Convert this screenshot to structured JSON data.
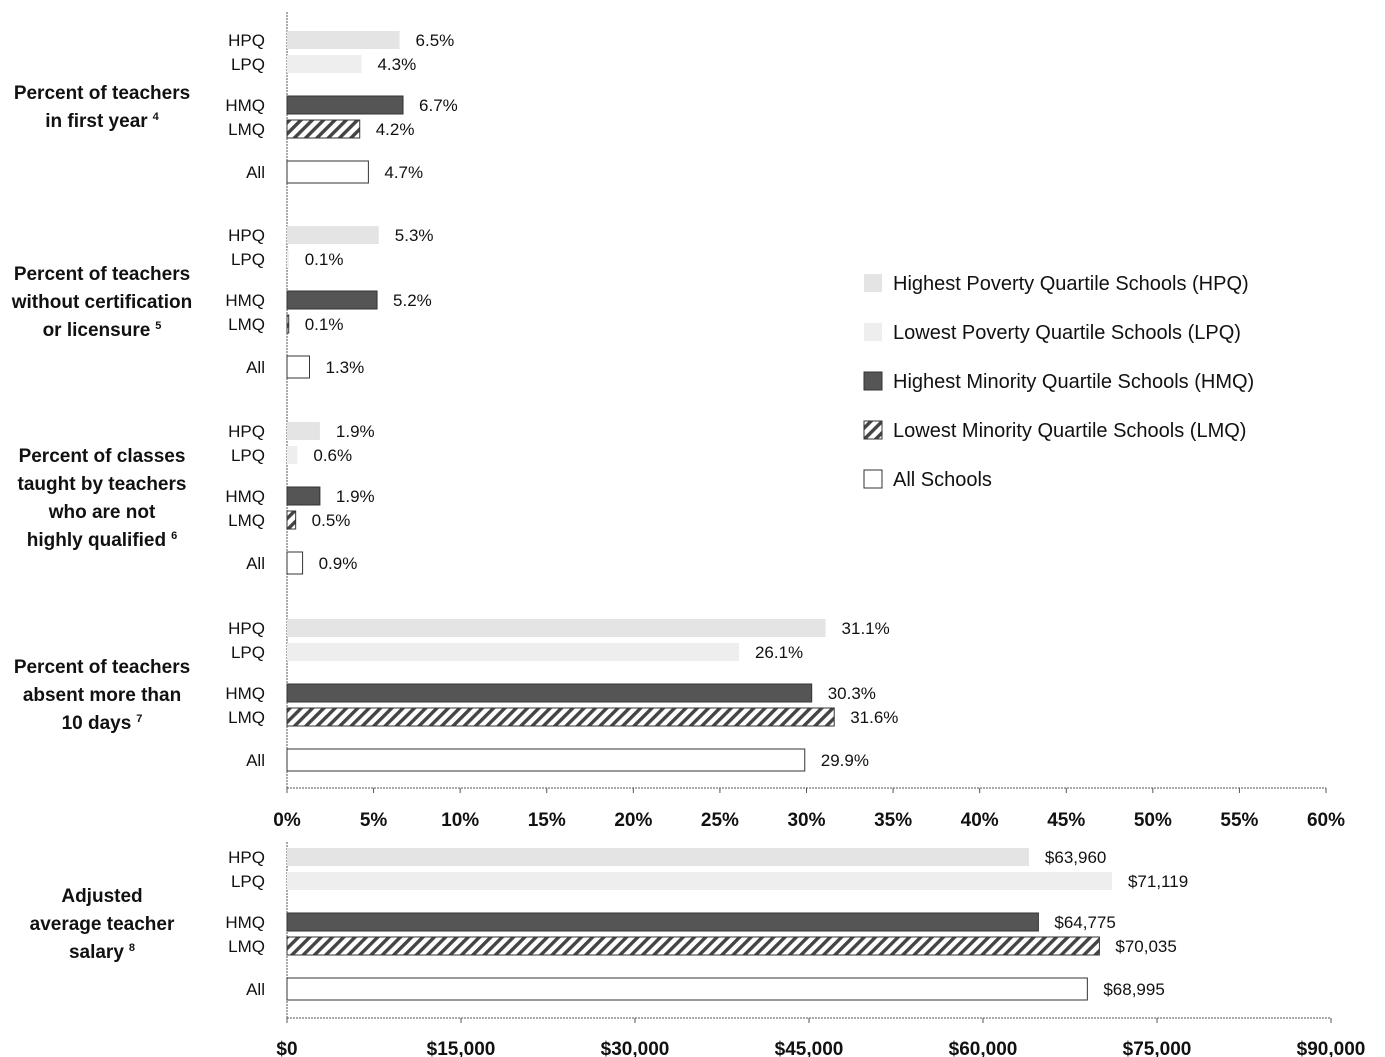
{
  "colors": {
    "HPQ": "#e4e4e4",
    "LPQ": "#eeeeee",
    "HMQ": "#555555",
    "LMQ_stripe": "#444444",
    "All": "#ffffff",
    "axis": "#555555"
  },
  "legend": [
    {
      "key": "HPQ",
      "label": "Highest Poverty Quartile Schools (HPQ)"
    },
    {
      "key": "LPQ",
      "label": "Lowest Poverty Quartile Schools (LPQ)"
    },
    {
      "key": "HMQ",
      "label": "Highest Minority Quartile Schools (HMQ)"
    },
    {
      "key": "LMQ",
      "label": "Lowest Minority Quartile Schools (LMQ)"
    },
    {
      "key": "All",
      "label": "All Schools"
    }
  ],
  "chart_data": [
    {
      "type": "bar",
      "orientation": "horizontal",
      "xlim": [
        0,
        60
      ],
      "x_ticks": [
        0,
        5,
        10,
        15,
        20,
        25,
        30,
        35,
        40,
        45,
        50,
        55,
        60
      ],
      "x_tick_labels": [
        "0%",
        "5%",
        "10%",
        "15%",
        "20%",
        "25%",
        "30%",
        "35%",
        "40%",
        "45%",
        "50%",
        "55%",
        "60%"
      ],
      "legend_position": "right",
      "groups": [
        {
          "title": [
            "Percent of teachers",
            "in first year"
          ],
          "footnote": "4",
          "bars": [
            {
              "label": "HPQ",
              "value": 6.5,
              "value_label": "6.5%"
            },
            {
              "label": "LPQ",
              "value": 4.3,
              "value_label": "4.3%"
            },
            {
              "label": "HMQ",
              "value": 6.7,
              "value_label": "6.7%"
            },
            {
              "label": "LMQ",
              "value": 4.2,
              "value_label": "4.2%"
            },
            {
              "label": "All",
              "value": 4.7,
              "value_label": "4.7%"
            }
          ]
        },
        {
          "title": [
            "Percent of teachers",
            "without certification",
            "or licensure"
          ],
          "footnote": "5",
          "bars": [
            {
              "label": "HPQ",
              "value": 5.3,
              "value_label": "5.3%"
            },
            {
              "label": "LPQ",
              "value": 0.1,
              "value_label": "0.1%"
            },
            {
              "label": "HMQ",
              "value": 5.2,
              "value_label": "5.2%"
            },
            {
              "label": "LMQ",
              "value": 0.1,
              "value_label": "0.1%"
            },
            {
              "label": "All",
              "value": 1.3,
              "value_label": "1.3%"
            }
          ]
        },
        {
          "title": [
            "Percent of classes",
            "taught by teachers",
            "who are not",
            "highly qualified"
          ],
          "footnote": "6",
          "bars": [
            {
              "label": "HPQ",
              "value": 1.9,
              "value_label": "1.9%"
            },
            {
              "label": "LPQ",
              "value": 0.6,
              "value_label": "0.6%"
            },
            {
              "label": "HMQ",
              "value": 1.9,
              "value_label": "1.9%"
            },
            {
              "label": "LMQ",
              "value": 0.5,
              "value_label": "0.5%"
            },
            {
              "label": "All",
              "value": 0.9,
              "value_label": "0.9%"
            }
          ]
        },
        {
          "title": [
            "Percent of teachers",
            "absent more than",
            "10 days"
          ],
          "footnote": "7",
          "bars": [
            {
              "label": "HPQ",
              "value": 31.1,
              "value_label": "31.1%"
            },
            {
              "label": "LPQ",
              "value": 26.1,
              "value_label": "26.1%"
            },
            {
              "label": "HMQ",
              "value": 30.3,
              "value_label": "30.3%"
            },
            {
              "label": "LMQ",
              "value": 31.6,
              "value_label": "31.6%"
            },
            {
              "label": "All",
              "value": 29.9,
              "value_label": "29.9%"
            }
          ]
        }
      ]
    },
    {
      "type": "bar",
      "orientation": "horizontal",
      "xlim": [
        0,
        90000
      ],
      "x_ticks": [
        0,
        15000,
        30000,
        45000,
        60000,
        75000,
        90000
      ],
      "x_tick_labels": [
        "$0",
        "$15,000",
        "$30,000",
        "$45,000",
        "$60,000",
        "$75,000",
        "$90,000"
      ],
      "groups": [
        {
          "title": [
            "Adjusted",
            "average teacher",
            "salary"
          ],
          "footnote": "8",
          "bars": [
            {
              "label": "HPQ",
              "value": 63960,
              "value_label": "$63,960"
            },
            {
              "label": "LPQ",
              "value": 71119,
              "value_label": "$71,119"
            },
            {
              "label": "HMQ",
              "value": 64775,
              "value_label": "$64,775"
            },
            {
              "label": "LMQ",
              "value": 70035,
              "value_label": "$70,035"
            },
            {
              "label": "All",
              "value": 68995,
              "value_label": "$68,995"
            }
          ]
        }
      ]
    }
  ]
}
